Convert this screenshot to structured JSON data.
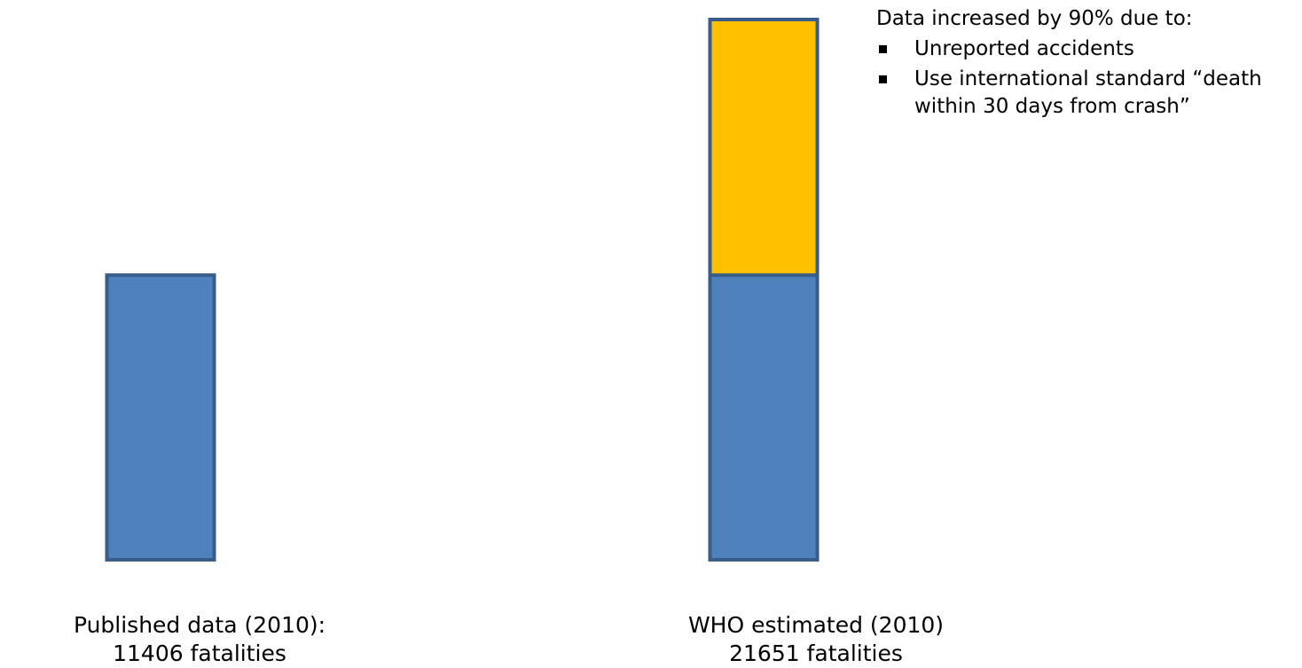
{
  "chart_data": {
    "type": "bar",
    "stacked": true,
    "categories": [
      "Published data (2010):",
      "WHO estimated (2010)"
    ],
    "series": [
      {
        "values": [
          11406,
          11406
        ],
        "color": "#4f81bd"
      },
      {
        "values": [
          0,
          10245
        ],
        "color": "#ffc000"
      }
    ],
    "totals": [
      11406,
      21651
    ],
    "value_labels": [
      "11406 fatalities",
      "21651 fatalities"
    ],
    "bar_outline_color": "#385d8a",
    "axes_visible": false,
    "grid": false,
    "legend": "none",
    "ylim": [
      0,
      21651
    ]
  },
  "annotation": {
    "heading": "Data increased by 90% due to:",
    "bullets": [
      "Unreported accidents",
      "Use international standard “death within 30 days from crash”"
    ]
  }
}
